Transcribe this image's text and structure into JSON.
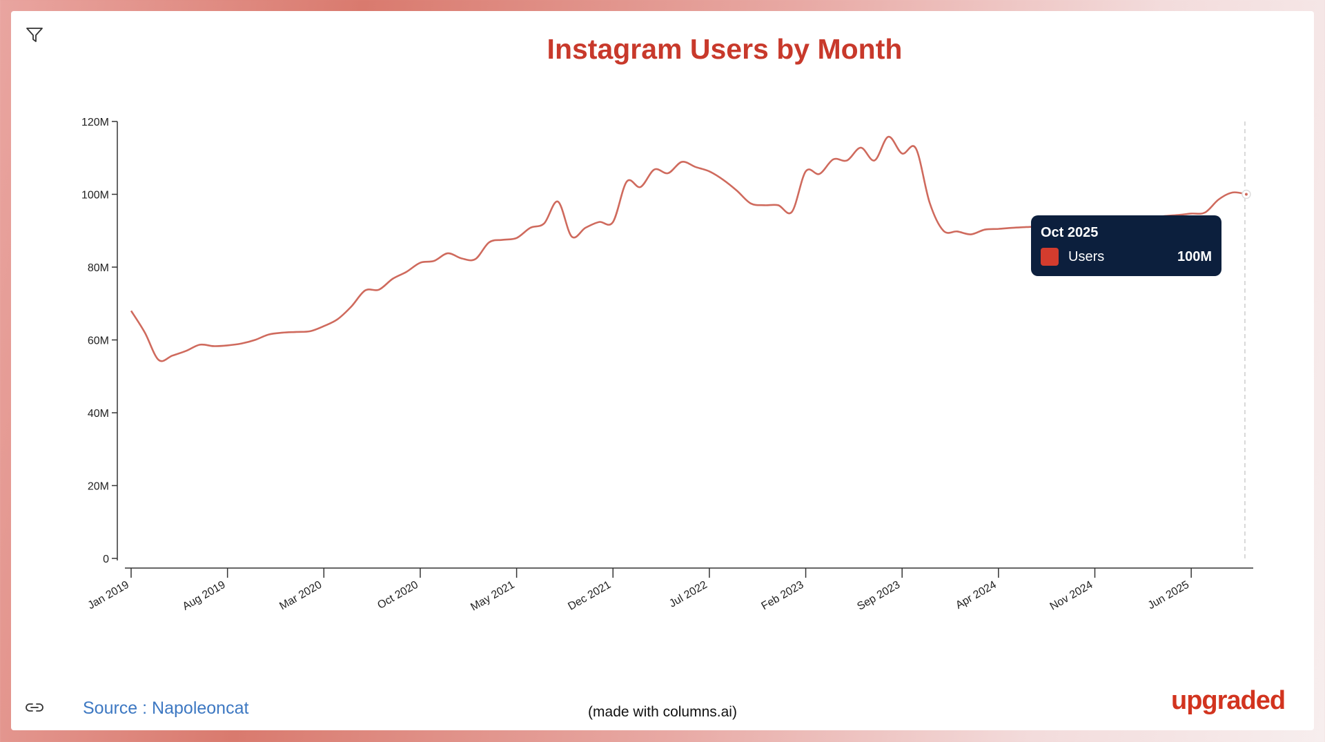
{
  "toolbar": {
    "filter_icon": "filter-icon",
    "link_icon": "link-icon"
  },
  "footer": {
    "source": "Source : Napoleoncat",
    "made_with": "(made with columns.ai)",
    "logo": "upgraded"
  },
  "tooltip": {
    "date": "Oct 2025",
    "series": "Users",
    "value": "100M"
  },
  "colors": {
    "line": "#cf6a5d",
    "title": "#c8392b",
    "tooltip_bg": "#0c1f3d",
    "swatch": "#d33c2e"
  },
  "chart_data": {
    "type": "line",
    "title": "Instagram Users by Month",
    "xlabel": "",
    "ylabel": "",
    "ylim": [
      0,
      120000000
    ],
    "y_ticks": [
      "0",
      "20M",
      "40M",
      "60M",
      "80M",
      "100M",
      "120M"
    ],
    "x_ticks": [
      "Jan 2019",
      "Aug 2019",
      "Mar 2020",
      "Oct 2020",
      "May 2021",
      "Dec 2021",
      "Jul 2022",
      "Feb 2023",
      "Sep 2023",
      "Apr 2024",
      "Nov 2024",
      "Jun 2025"
    ],
    "x_start": "Jan 2019",
    "x_end": "Oct 2025",
    "grid": false,
    "series": [
      {
        "name": "Users",
        "values_millions": [
          68,
          62,
          54.5,
          55.7,
          57,
          58.7,
          58.3,
          58.5,
          59,
          60,
          61.5,
          62,
          62.2,
          62.4,
          63.8,
          65.7,
          69.2,
          73.6,
          73.8,
          76.8,
          78.7,
          81.2,
          81.7,
          83.8,
          82.4,
          82.2,
          86.8,
          87.5,
          88,
          90.8,
          92,
          98,
          88.4,
          90.8,
          92.4,
          92.4,
          103.5,
          102,
          106.8,
          105.8,
          108.9,
          107.5,
          106.3,
          104,
          101,
          97.5,
          97,
          97,
          95.2,
          106.3,
          105.6,
          109.6,
          109.3,
          112.8,
          109.3,
          115.8,
          111.2,
          112.6,
          97.7,
          90,
          89.8,
          89,
          90.3,
          90.5,
          90.8,
          91,
          91.2,
          91.5,
          91.8,
          92,
          92.3,
          92.6,
          93,
          93.3,
          93.6,
          94,
          94.3,
          94.7,
          95,
          98.6,
          100.5,
          100
        ]
      }
    ]
  }
}
